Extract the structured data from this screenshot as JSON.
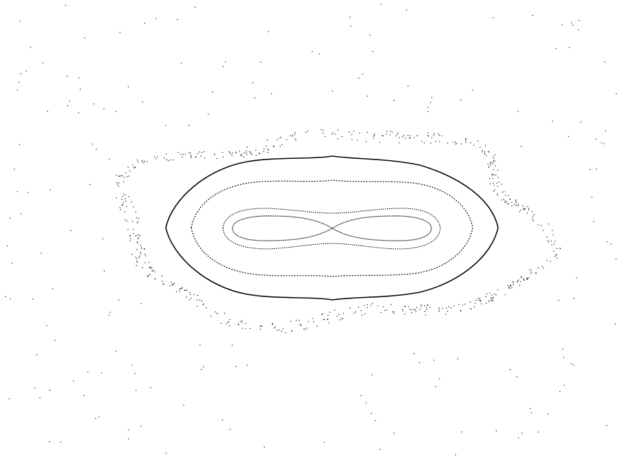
{
  "figure": {
    "background": "#ffffff",
    "ink": "#000000",
    "description_kind": "phase-portrait",
    "curves": [
      {
        "id": "outer-solid-orbit",
        "style": "solid"
      },
      {
        "id": "middle-dotted-orbit",
        "style": "dotted"
      },
      {
        "id": "inner-dotted-orbit",
        "style": "dotted"
      },
      {
        "id": "left-separatrix-lobe",
        "style": "dotted"
      },
      {
        "id": "right-separatrix-lobe",
        "style": "dotted"
      },
      {
        "id": "chaotic-halo",
        "style": "scatter"
      },
      {
        "id": "outer-scatter-field",
        "style": "scatter"
      }
    ]
  }
}
